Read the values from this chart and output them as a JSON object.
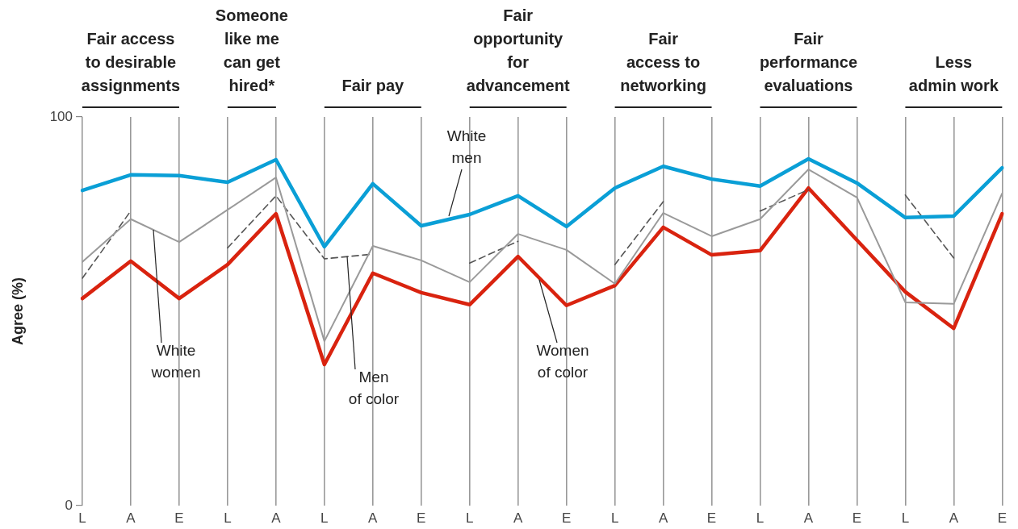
{
  "chart_data": {
    "type": "line",
    "ylabel": "Agree (%)",
    "annotations": [
      "Fair access\nto desirable\nassignments",
      "Someone\nlike me\ncan get\nhired*",
      "Fair pay",
      "Fair\nopportunity\nfor\nadvancement",
      "Fair\naccess to\nnetworking",
      "Fair\nperformance\nevaluations",
      "Less\nadmin work"
    ],
    "categories": [
      "L",
      "A",
      "E",
      "L",
      "A",
      "L",
      "A",
      "E",
      "L",
      "A",
      "E",
      "L",
      "A",
      "E",
      "L",
      "A",
      "E",
      "L",
      "A",
      "E"
    ],
    "series": [
      {
        "name": "White men",
        "color": "#0a9fd6",
        "values": [
          81.1,
          85.1,
          84.9,
          83.2,
          89,
          66.6,
          82.8,
          72,
          74.9,
          79.7,
          71.8,
          81.7,
          87.3,
          84,
          82.2,
          89.2,
          83,
          74.1,
          74.5,
          86.9
        ]
      },
      {
        "name": "White women",
        "color": "#9a9a9a",
        "values": [
          62.7,
          73.7,
          67.8,
          76.1,
          84.4,
          42.3,
          66.8,
          63.1,
          57.5,
          69.9,
          65.8,
          57.1,
          75.3,
          69.3,
          73.7,
          86.5,
          79.3,
          52.3,
          51.9,
          80.3
        ]
      },
      {
        "name": "Men of color",
        "color": "#555555",
        "line_style": "dashed",
        "values": [
          58.5,
          75.8,
          null,
          66.3,
          79.7,
          63.5,
          64.7,
          null,
          62.4,
          68,
          null,
          62,
          78.2,
          null,
          75.8,
          81.3,
          null,
          79.9,
          63.7,
          null
        ]
      },
      {
        "name": "Women of color",
        "color": "#d9230f",
        "values": [
          53.3,
          62.9,
          53.3,
          62,
          75.1,
          36.3,
          59.8,
          54.8,
          51.7,
          64.1,
          51.5,
          56.6,
          71.6,
          64.5,
          65.6,
          81.7,
          68.3,
          55,
          45.6,
          75.1
        ]
      }
    ],
    "ylim": [
      0,
      100
    ],
    "yticks": [
      0,
      100
    ],
    "grid": "x",
    "legend": false,
    "marker": "none"
  }
}
